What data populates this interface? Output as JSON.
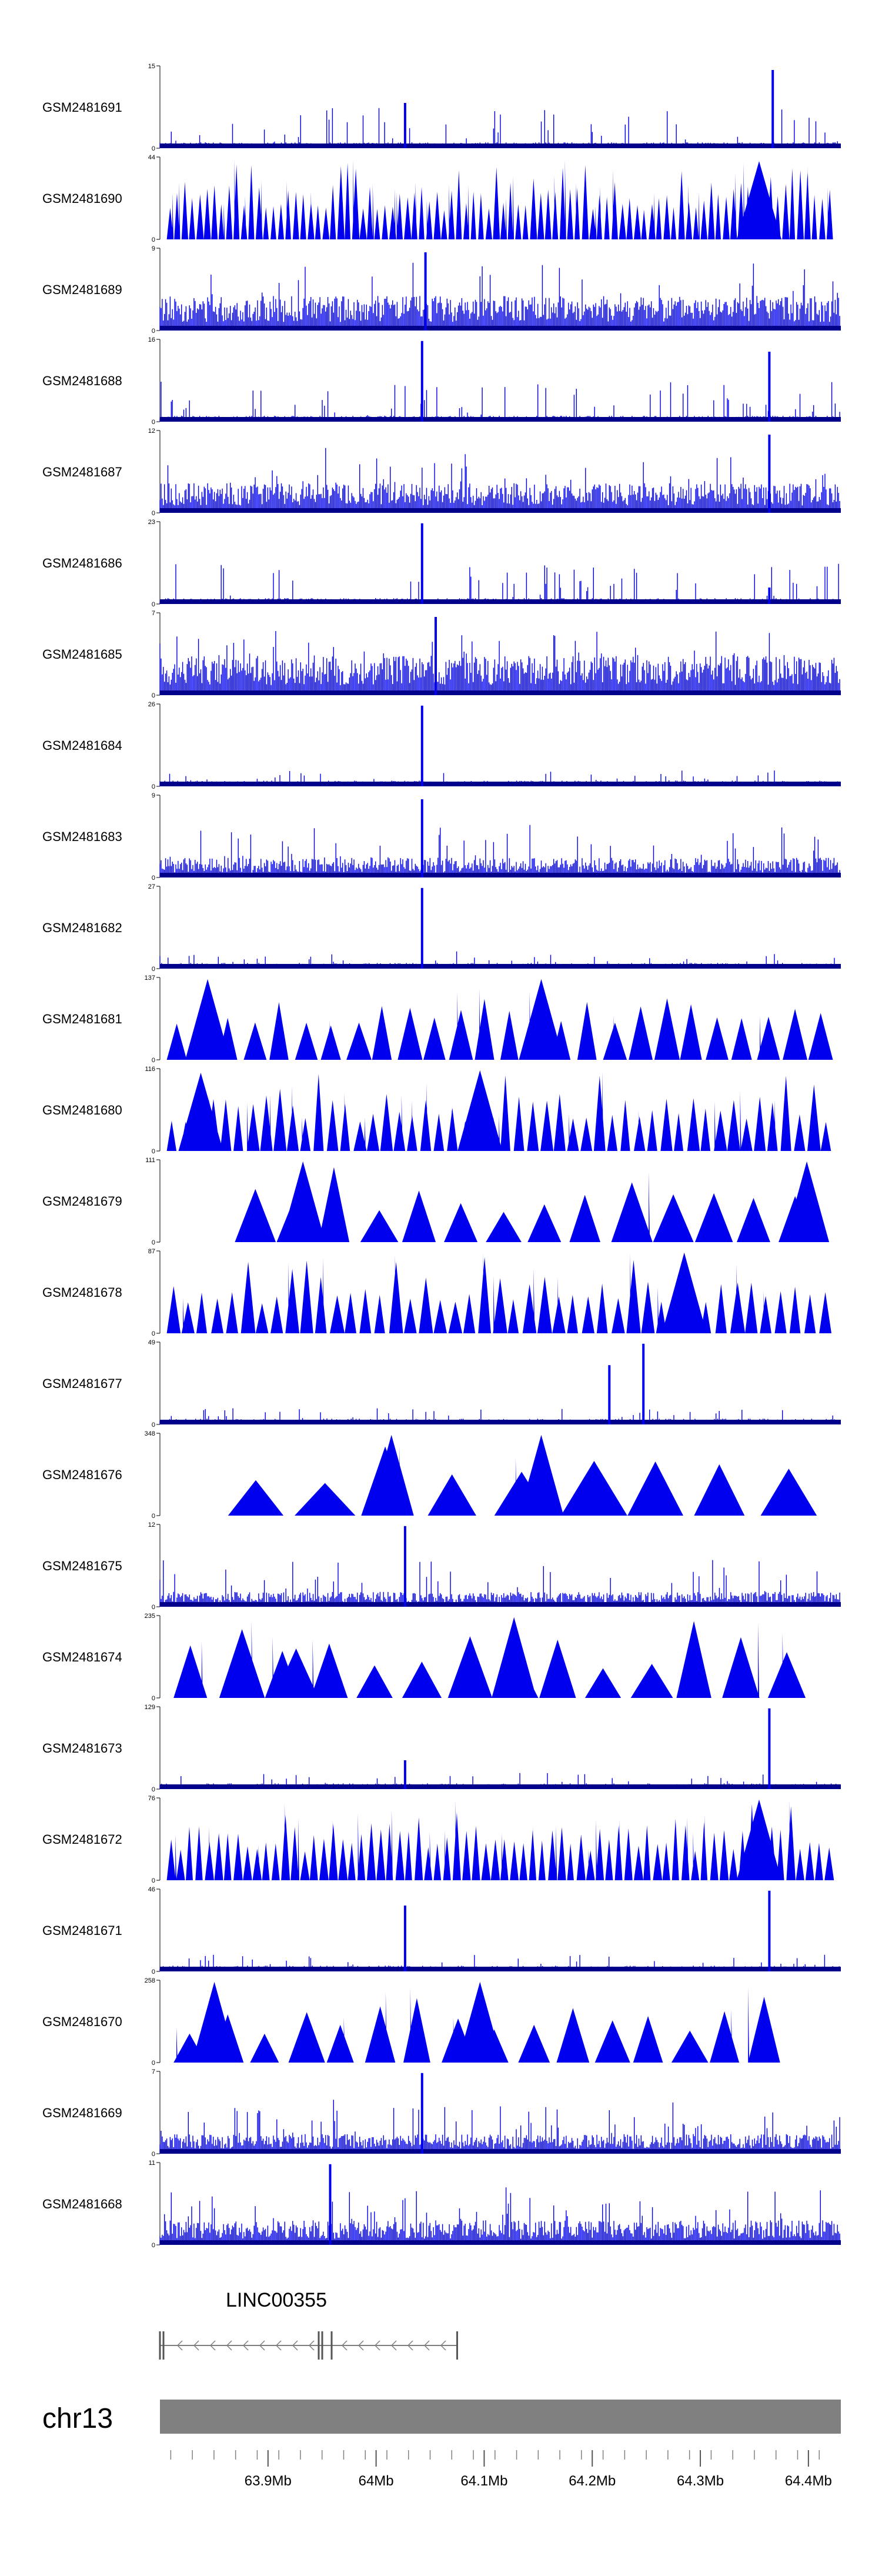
{
  "chart_data": {
    "type": "area",
    "tracks": [
      {
        "name": "GSM2481691",
        "ymax": 15,
        "ymin": 0,
        "style": "dense",
        "seed": 11,
        "peaks": [
          [
            0.36,
            0.55
          ],
          [
            0.9,
            0.95
          ]
        ]
      },
      {
        "name": "GSM2481690",
        "ymax": 44,
        "ymin": 0,
        "style": "tri",
        "seed": 12,
        "peaks": [
          [
            0.88,
            0.95
          ]
        ],
        "count": 90
      },
      {
        "name": "GSM2481689",
        "ymax": 9,
        "ymin": 0,
        "style": "dense",
        "seed": 13,
        "peaks": [
          [
            0.39,
            0.95
          ]
        ],
        "base": 0.35
      },
      {
        "name": "GSM2481688",
        "ymax": 16,
        "ymin": 0,
        "style": "dense",
        "seed": 14,
        "peaks": [
          [
            0.385,
            0.98
          ],
          [
            0.895,
            0.85
          ]
        ]
      },
      {
        "name": "GSM2481687",
        "ymax": 12,
        "ymin": 0,
        "style": "dense",
        "seed": 15,
        "peaks": [
          [
            0.895,
            0.95
          ]
        ],
        "base": 0.3
      },
      {
        "name": "GSM2481686",
        "ymax": 23,
        "ymin": 0,
        "style": "dense",
        "seed": 16,
        "peaks": [
          [
            0.385,
            0.98
          ],
          [
            0.895,
            0.2
          ]
        ]
      },
      {
        "name": "GSM2481685",
        "ymax": 7,
        "ymin": 0,
        "style": "dense",
        "seed": 17,
        "peaks": [
          [
            0.405,
            0.95
          ]
        ],
        "base": 0.4
      },
      {
        "name": "GSM2481684",
        "ymax": 26,
        "ymin": 0,
        "style": "sparse",
        "seed": 18,
        "peaks": [
          [
            0.385,
            0.98
          ]
        ]
      },
      {
        "name": "GSM2481683",
        "ymax": 9,
        "ymin": 0,
        "style": "dense",
        "seed": 19,
        "peaks": [
          [
            0.385,
            0.95
          ]
        ],
        "base": 0.2
      },
      {
        "name": "GSM2481682",
        "ymax": 27,
        "ymin": 0,
        "style": "sparse",
        "seed": 20,
        "peaks": [
          [
            0.385,
            0.98
          ]
        ]
      },
      {
        "name": "GSM2481681",
        "ymax": 137,
        "ymin": 0,
        "style": "tri",
        "seed": 21,
        "count": 26,
        "peaks": [
          [
            0.07,
            0.98
          ],
          [
            0.56,
            0.98
          ]
        ]
      },
      {
        "name": "GSM2481680",
        "ymax": 116,
        "ymin": 0,
        "style": "tri",
        "seed": 22,
        "count": 50,
        "peaks": [
          [
            0.06,
            0.95
          ],
          [
            0.47,
            0.98
          ]
        ]
      },
      {
        "name": "GSM2481679",
        "ymax": 111,
        "ymin": 0,
        "style": "tri",
        "seed": 23,
        "count": 14,
        "start": 0.11,
        "end": 0.97,
        "peaks": [
          [
            0.21,
            0.98
          ],
          [
            0.95,
            0.98
          ]
        ]
      },
      {
        "name": "GSM2481678",
        "ymax": 87,
        "ymin": 0,
        "style": "tri",
        "seed": 24,
        "count": 45,
        "peaks": [
          [
            0.77,
            0.98
          ]
        ]
      },
      {
        "name": "GSM2481677",
        "ymax": 49,
        "ymin": 0,
        "style": "sparse",
        "seed": 25,
        "peaks": [
          [
            0.66,
            0.72
          ],
          [
            0.71,
            0.98
          ]
        ]
      },
      {
        "name": "GSM2481676",
        "ymax": 348,
        "ymin": 0,
        "style": "tri",
        "seed": 26,
        "count": 9,
        "start": 0.1,
        "end": 0.98,
        "peaks": [
          [
            0.34,
            0.98
          ],
          [
            0.56,
            0.98
          ]
        ]
      },
      {
        "name": "GSM2481675",
        "ymax": 12,
        "ymin": 0,
        "style": "dense",
        "seed": 27,
        "peaks": [
          [
            0.36,
            0.98
          ]
        ],
        "base": 0.15
      },
      {
        "name": "GSM2481674",
        "ymax": 235,
        "ymin": 0,
        "style": "tri",
        "seed": 28,
        "count": 14,
        "start": 0.02,
        "end": 0.96,
        "peaks": [
          [
            0.2,
            0.6
          ],
          [
            0.52,
            0.98
          ]
        ]
      },
      {
        "name": "GSM2481673",
        "ymax": 129,
        "ymin": 0,
        "style": "sparse",
        "seed": 29,
        "peaks": [
          [
            0.36,
            0.35
          ],
          [
            0.895,
            0.98
          ]
        ]
      },
      {
        "name": "GSM2481672",
        "ymax": 76,
        "ymin": 0,
        "style": "tri",
        "seed": 30,
        "count": 70,
        "peaks": [
          [
            0.88,
            0.98
          ]
        ]
      },
      {
        "name": "GSM2481671",
        "ymax": 46,
        "ymin": 0,
        "style": "sparse",
        "seed": 31,
        "peaks": [
          [
            0.36,
            0.8
          ],
          [
            0.895,
            0.98
          ]
        ]
      },
      {
        "name": "GSM2481670",
        "ymax": 258,
        "ymin": 0,
        "style": "tri",
        "seed": 32,
        "count": 16,
        "start": 0.02,
        "end": 0.92,
        "peaks": [
          [
            0.08,
            0.98
          ],
          [
            0.47,
            0.98
          ]
        ]
      },
      {
        "name": "GSM2481669",
        "ymax": 7,
        "ymin": 0,
        "style": "dense",
        "seed": 33,
        "peaks": [
          [
            0.385,
            0.98
          ]
        ],
        "base": 0.2
      },
      {
        "name": "GSM2481668",
        "ymax": 11,
        "ymin": 0,
        "style": "dense",
        "seed": 34,
        "peaks": [
          [
            0.25,
            0.98
          ]
        ],
        "base": 0.25
      }
    ],
    "series_color": "#0000ee",
    "gene": {
      "label": "LINC00355",
      "start": 63.8,
      "end": 64.075
    },
    "ideogram_label": "chr13",
    "genome_axis": {
      "xlim": [
        63.8,
        64.43
      ],
      "ticks": [
        63.9,
        64.0,
        64.1,
        64.2,
        64.3,
        64.4
      ],
      "tick_labels": [
        "63.9Mb",
        "64Mb",
        "64.1Mb",
        "64.2Mb",
        "64.3Mb",
        "64.4Mb"
      ]
    }
  }
}
